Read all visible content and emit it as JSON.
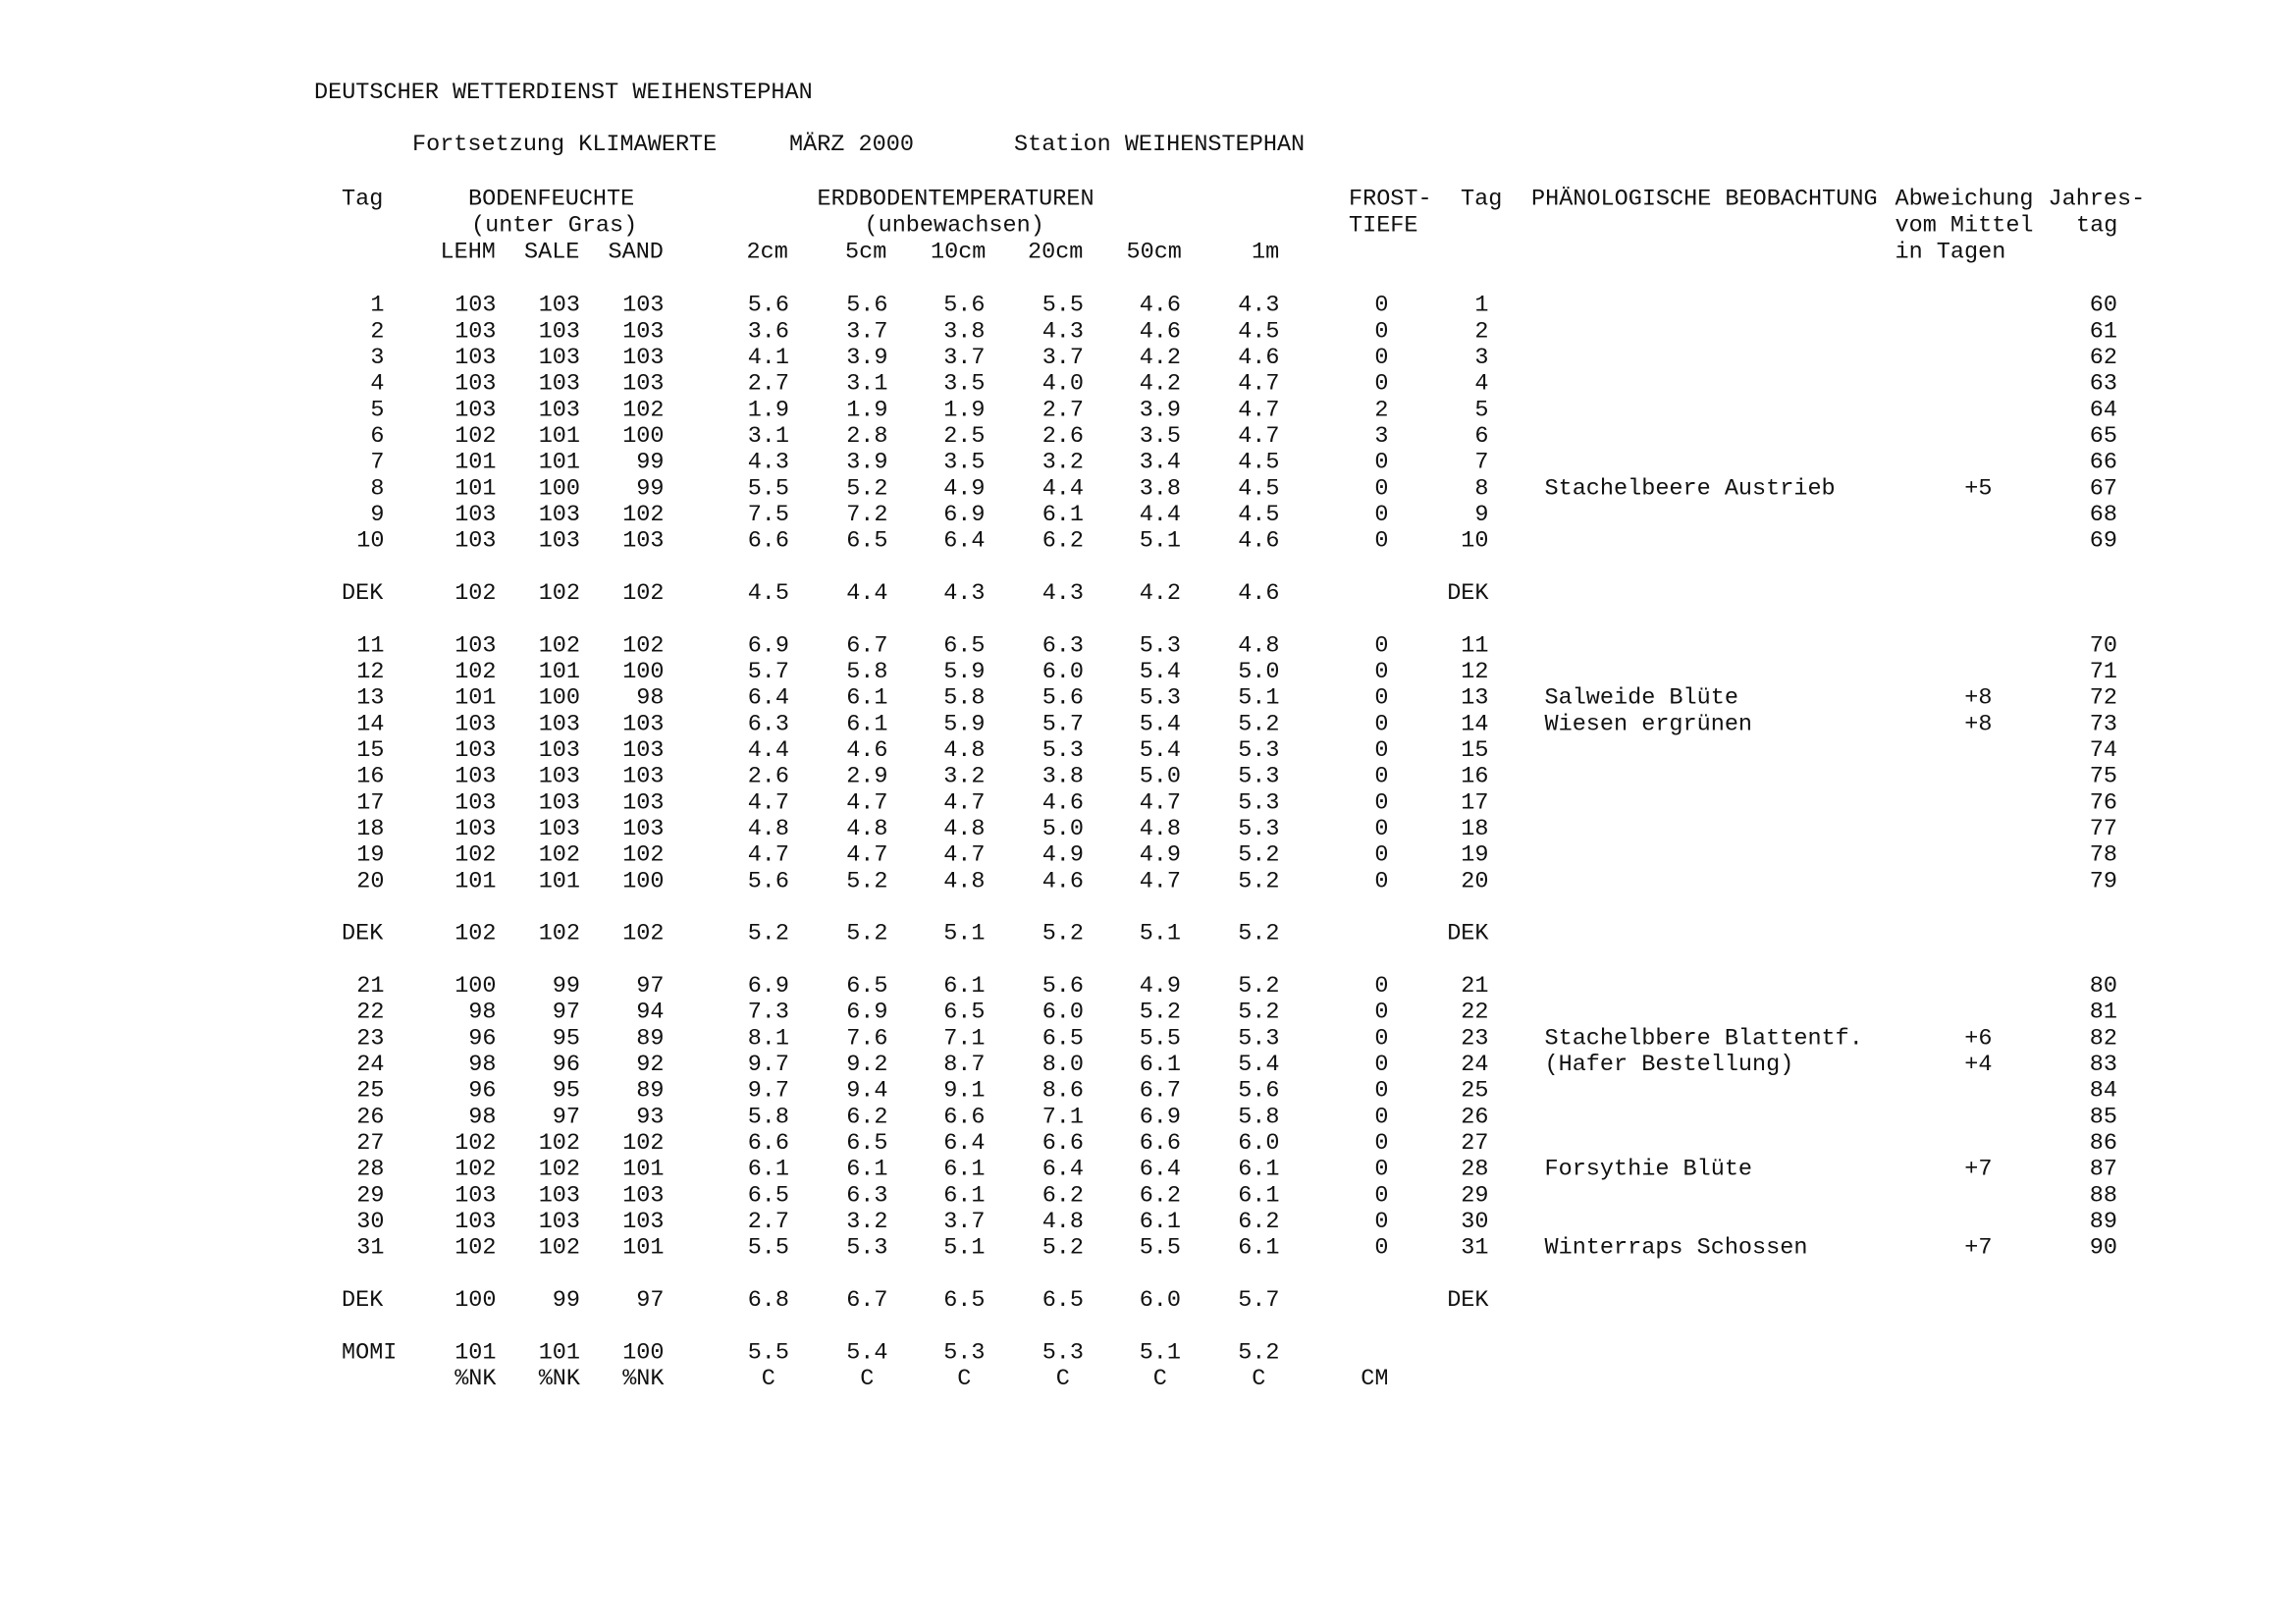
{
  "header": {
    "title": "DEUTSCHER WETTERDIENST WEIHENSTEPHAN",
    "subtitle": [
      "Fortsetzung KLIMAWERTE",
      "MÄRZ  2000",
      "Station WEIHENSTEPHAN"
    ],
    "columns": [
      "Tag",
      "BODENFEUCHTE",
      "ERDBODENTEMPERATUREN",
      "FROST-",
      "Tag",
      "PHÄNOLOGISCHE BEOBACHTUNG",
      "Abweichung",
      "Jahres-",
      "(unter Gras)",
      "(unbewachsen)",
      "TIEFE",
      "vom Mittel",
      "tag",
      "LEHM",
      "SALE",
      "SAND",
      "2cm",
      "5cm",
      "10cm",
      "20cm",
      "50cm",
      "1m",
      "in Tagen"
    ]
  },
  "table": {
    "blocks": [
      {
        "days": [
          {
            "cells": [
              "1",
              "103",
              "103",
              "103",
              "5.6",
              "5.6",
              "5.6",
              "5.5",
              "4.6",
              "4.3",
              "0",
              "1",
              "60"
            ]
          },
          {
            "cells": [
              "2",
              "103",
              "103",
              "103",
              "3.6",
              "3.7",
              "3.8",
              "4.3",
              "4.6",
              "4.5",
              "0",
              "2",
              "61"
            ]
          },
          {
            "cells": [
              "3",
              "103",
              "103",
              "103",
              "4.1",
              "3.9",
              "3.7",
              "3.7",
              "4.2",
              "4.6",
              "0",
              "3",
              "62"
            ]
          },
          {
            "cells": [
              "4",
              "103",
              "103",
              "103",
              "2.7",
              "3.1",
              "3.5",
              "4.0",
              "4.2",
              "4.7",
              "0",
              "4",
              "63"
            ]
          },
          {
            "cells": [
              "5",
              "103",
              "103",
              "102",
              "1.9",
              "1.9",
              "1.9",
              "2.7",
              "3.9",
              "4.7",
              "2",
              "5",
              "64"
            ]
          },
          {
            "cells": [
              "6",
              "102",
              "101",
              "100",
              "3.1",
              "2.8",
              "2.5",
              "2.6",
              "3.5",
              "4.7",
              "3",
              "6",
              "65"
            ]
          },
          {
            "cells": [
              "7",
              "101",
              "101",
              "99",
              "4.3",
              "3.9",
              "3.5",
              "3.2",
              "3.4",
              "4.5",
              "0",
              "7",
              "66"
            ]
          },
          {
            "cells": [
              "8",
              "101",
              "100",
              "99",
              "5.5",
              "5.2",
              "4.9",
              "4.4",
              "3.8",
              "4.5",
              "0",
              "8",
              "67"
            ],
            "beobachtung": "Stachelbeere Austrieb",
            "abweichung": "+5"
          },
          {
            "cells": [
              "9",
              "103",
              "103",
              "102",
              "7.5",
              "7.2",
              "6.9",
              "6.1",
              "4.4",
              "4.5",
              "0",
              "9",
              "68"
            ]
          },
          {
            "cells": [
              "10",
              "103",
              "103",
              "103",
              "6.6",
              "6.5",
              "6.4",
              "6.2",
              "5.1",
              "4.6",
              "0",
              "10",
              "69"
            ]
          }
        ],
        "dek": [
          "DEK",
          "102",
          "102",
          "102",
          "4.5",
          "4.4",
          "4.3",
          "4.3",
          "4.2",
          "4.6",
          "DEK"
        ]
      },
      {
        "days": [
          {
            "cells": [
              "11",
              "103",
              "102",
              "102",
              "6.9",
              "6.7",
              "6.5",
              "6.3",
              "5.3",
              "4.8",
              "0",
              "11",
              "70"
            ]
          },
          {
            "cells": [
              "12",
              "102",
              "101",
              "100",
              "5.7",
              "5.8",
              "5.9",
              "6.0",
              "5.4",
              "5.0",
              "0",
              "12",
              "71"
            ]
          },
          {
            "cells": [
              "13",
              "101",
              "100",
              "98",
              "6.4",
              "6.1",
              "5.8",
              "5.6",
              "5.3",
              "5.1",
              "0",
              "13",
              "72"
            ],
            "beobachtung": "Salweide Blüte",
            "abweichung": "+8"
          },
          {
            "cells": [
              "14",
              "103",
              "103",
              "103",
              "6.3",
              "6.1",
              "5.9",
              "5.7",
              "5.4",
              "5.2",
              "0",
              "14",
              "73"
            ],
            "beobachtung": "Wiesen ergrünen",
            "abweichung": "+8"
          },
          {
            "cells": [
              "15",
              "103",
              "103",
              "103",
              "4.4",
              "4.6",
              "4.8",
              "5.3",
              "5.4",
              "5.3",
              "0",
              "15",
              "74"
            ]
          },
          {
            "cells": [
              "16",
              "103",
              "103",
              "103",
              "2.6",
              "2.9",
              "3.2",
              "3.8",
              "5.0",
              "5.3",
              "0",
              "16",
              "75"
            ]
          },
          {
            "cells": [
              "17",
              "103",
              "103",
              "103",
              "4.7",
              "4.7",
              "4.7",
              "4.6",
              "4.7",
              "5.3",
              "0",
              "17",
              "76"
            ]
          },
          {
            "cells": [
              "18",
              "103",
              "103",
              "103",
              "4.8",
              "4.8",
              "4.8",
              "5.0",
              "4.8",
              "5.3",
              "0",
              "18",
              "77"
            ]
          },
          {
            "cells": [
              "19",
              "102",
              "102",
              "102",
              "4.7",
              "4.7",
              "4.7",
              "4.9",
              "4.9",
              "5.2",
              "0",
              "19",
              "78"
            ]
          },
          {
            "cells": [
              "20",
              "101",
              "101",
              "100",
              "5.6",
              "5.2",
              "4.8",
              "4.6",
              "4.7",
              "5.2",
              "0",
              "20",
              "79"
            ]
          }
        ],
        "dek": [
          "DEK",
          "102",
          "102",
          "102",
          "5.2",
          "5.2",
          "5.1",
          "5.2",
          "5.1",
          "5.2",
          "DEK"
        ]
      },
      {
        "days": [
          {
            "cells": [
              "21",
              "100",
              "99",
              "97",
              "6.9",
              "6.5",
              "6.1",
              "5.6",
              "4.9",
              "5.2",
              "0",
              "21",
              "80"
            ]
          },
          {
            "cells": [
              "22",
              "98",
              "97",
              "94",
              "7.3",
              "6.9",
              "6.5",
              "6.0",
              "5.2",
              "5.2",
              "0",
              "22",
              "81"
            ]
          },
          {
            "cells": [
              "23",
              "96",
              "95",
              "89",
              "8.1",
              "7.6",
              "7.1",
              "6.5",
              "5.5",
              "5.3",
              "0",
              "23",
              "82"
            ],
            "beobachtung": "Stachelbbere Blattentf.",
            "abweichung": "+6"
          },
          {
            "cells": [
              "24",
              "98",
              "96",
              "92",
              "9.7",
              "9.2",
              "8.7",
              "8.0",
              "6.1",
              "5.4",
              "0",
              "24",
              "83"
            ],
            "beobachtung": "(Hafer Bestellung)",
            "abweichung": "+4"
          },
          {
            "cells": [
              "25",
              "96",
              "95",
              "89",
              "9.7",
              "9.4",
              "9.1",
              "8.6",
              "6.7",
              "5.6",
              "0",
              "25",
              "84"
            ]
          },
          {
            "cells": [
              "26",
              "98",
              "97",
              "93",
              "5.8",
              "6.2",
              "6.6",
              "7.1",
              "6.9",
              "5.8",
              "0",
              "26",
              "85"
            ]
          },
          {
            "cells": [
              "27",
              "102",
              "102",
              "102",
              "6.6",
              "6.5",
              "6.4",
              "6.6",
              "6.6",
              "6.0",
              "0",
              "27",
              "86"
            ]
          },
          {
            "cells": [
              "28",
              "102",
              "102",
              "101",
              "6.1",
              "6.1",
              "6.1",
              "6.4",
              "6.4",
              "6.1",
              "0",
              "28",
              "87"
            ],
            "beobachtung": "Forsythie Blüte",
            "abweichung": "+7"
          },
          {
            "cells": [
              "29",
              "103",
              "103",
              "103",
              "6.5",
              "6.3",
              "6.1",
              "6.2",
              "6.2",
              "6.1",
              "0",
              "29",
              "88"
            ]
          },
          {
            "cells": [
              "30",
              "103",
              "103",
              "103",
              "2.7",
              "3.2",
              "3.7",
              "4.8",
              "6.1",
              "6.2",
              "0",
              "30",
              "89"
            ]
          },
          {
            "cells": [
              "31",
              "102",
              "102",
              "101",
              "5.5",
              "5.3",
              "5.1",
              "5.2",
              "5.5",
              "6.1",
              "0",
              "31",
              "90"
            ],
            "beobachtung": "Winterraps Schossen",
            "abweichung": "+7"
          }
        ],
        "dek": [
          "DEK",
          "100",
          "99",
          "97",
          "6.8",
          "6.7",
          "6.5",
          "6.5",
          "6.0",
          "5.7",
          "DEK"
        ]
      }
    ],
    "momi": [
      "MOMI",
      "101",
      "101",
      "100",
      "5.5",
      "5.4",
      "5.3",
      "5.3",
      "5.1",
      "5.2"
    ],
    "units": [
      "%NK",
      "%NK",
      "%NK",
      "C",
      "C",
      "C",
      "C",
      "C",
      "C",
      "CM"
    ]
  }
}
